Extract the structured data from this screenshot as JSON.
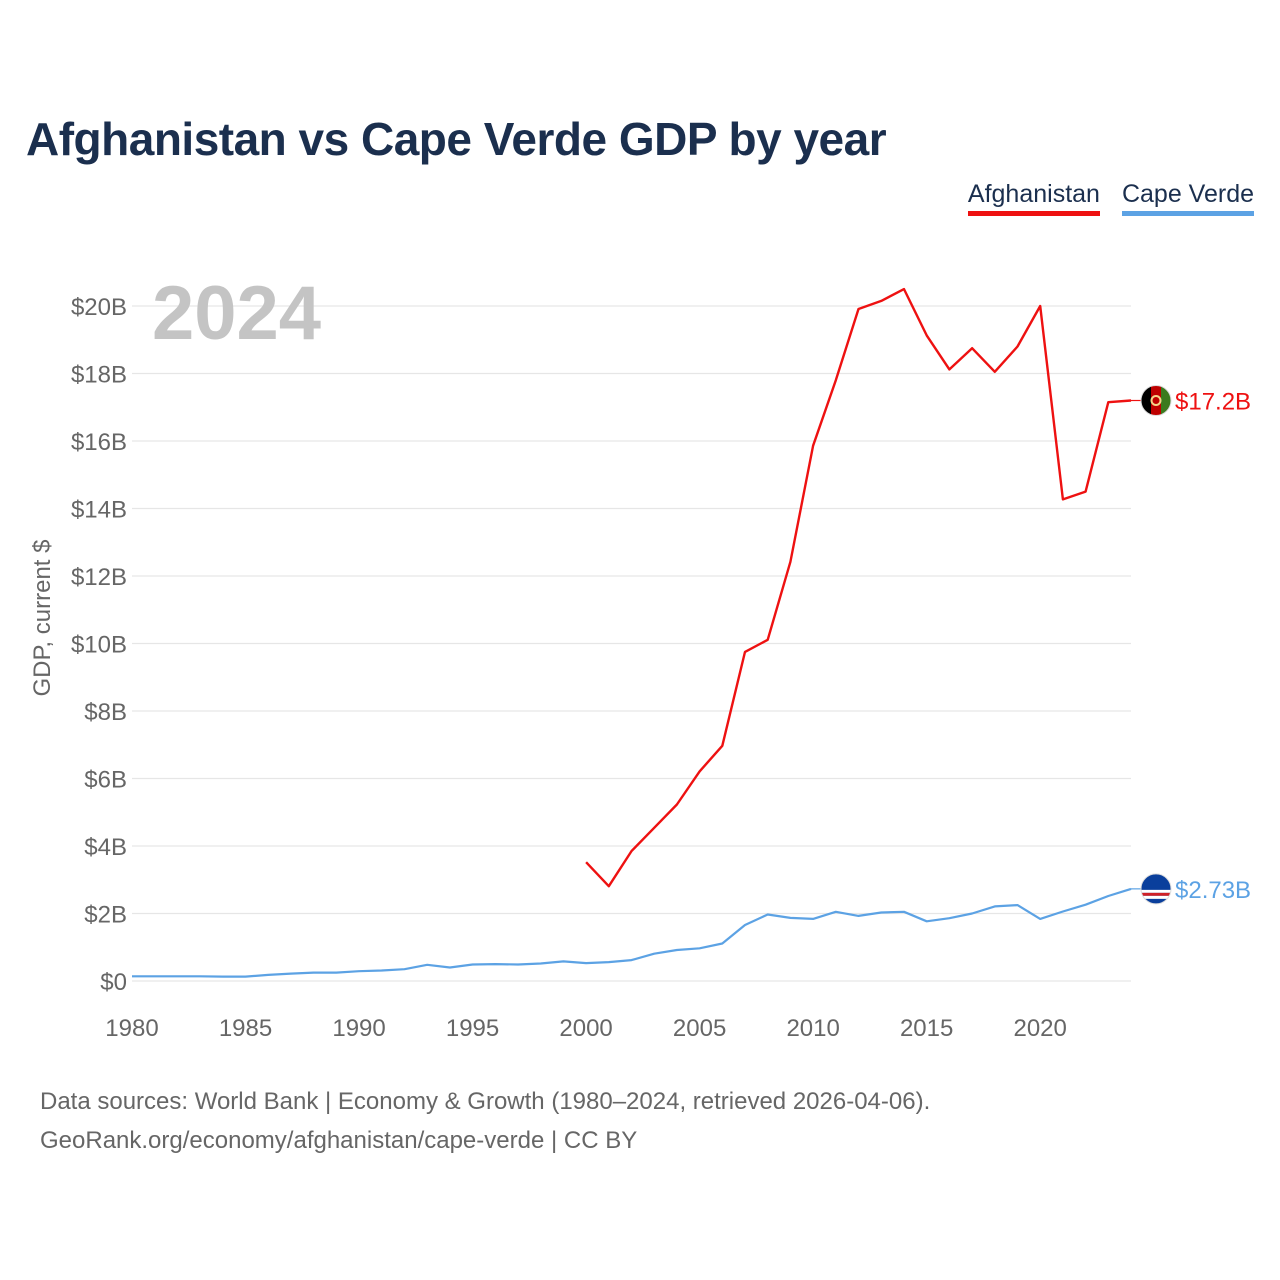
{
  "chart_data": {
    "type": "line",
    "title": "Afghanistan vs Cape Verde GDP by year",
    "ylabel": "GDP, current $",
    "xlabel": "",
    "year_label": "2024",
    "xlim": [
      1980,
      2024
    ],
    "ylim": [
      0,
      20
    ],
    "x_ticks": [
      1980,
      1985,
      1990,
      1995,
      2000,
      2005,
      2010,
      2015,
      2020
    ],
    "y_ticks": [
      {
        "value": 0,
        "label": "$0"
      },
      {
        "value": 2,
        "label": "$2B"
      },
      {
        "value": 4,
        "label": "$4B"
      },
      {
        "value": 6,
        "label": "$6B"
      },
      {
        "value": 8,
        "label": "$8B"
      },
      {
        "value": 10,
        "label": "$10B"
      },
      {
        "value": 12,
        "label": "$12B"
      },
      {
        "value": 14,
        "label": "$14B"
      },
      {
        "value": 16,
        "label": "$16B"
      },
      {
        "value": 18,
        "label": "$18B"
      },
      {
        "value": 20,
        "label": "$20B"
      }
    ],
    "units": "billions USD",
    "series": [
      {
        "name": "Afghanistan",
        "color": "#ee1111",
        "end_label": "$17.2B",
        "flag": "afghanistan-flag",
        "x": [
          2000,
          2001,
          2002,
          2003,
          2004,
          2005,
          2006,
          2007,
          2008,
          2009,
          2010,
          2011,
          2012,
          2013,
          2014,
          2015,
          2016,
          2017,
          2018,
          2019,
          2020,
          2021,
          2022,
          2023,
          2024
        ],
        "values": [
          3.52,
          2.81,
          3.85,
          4.54,
          5.23,
          6.21,
          6.97,
          9.75,
          10.11,
          12.42,
          15.86,
          17.8,
          19.91,
          20.15,
          20.5,
          19.13,
          18.12,
          18.75,
          18.05,
          18.8,
          20.0,
          14.27,
          14.5,
          17.15,
          17.2
        ]
      },
      {
        "name": "Cape Verde",
        "color": "#5ca2e4",
        "end_label": "$2.73B",
        "flag": "cape-verde-flag",
        "x": [
          1980,
          1981,
          1982,
          1983,
          1984,
          1985,
          1986,
          1987,
          1988,
          1989,
          1990,
          1991,
          1992,
          1993,
          1994,
          1995,
          1996,
          1997,
          1998,
          1999,
          2000,
          2001,
          2002,
          2003,
          2004,
          2005,
          2006,
          2007,
          2008,
          2009,
          2010,
          2011,
          2012,
          2013,
          2014,
          2015,
          2016,
          2017,
          2018,
          2019,
          2020,
          2021,
          2022,
          2023,
          2024
        ],
        "values": [
          0.14,
          0.14,
          0.14,
          0.14,
          0.13,
          0.13,
          0.18,
          0.22,
          0.25,
          0.25,
          0.29,
          0.31,
          0.35,
          0.48,
          0.4,
          0.49,
          0.5,
          0.49,
          0.52,
          0.58,
          0.53,
          0.56,
          0.62,
          0.81,
          0.92,
          0.97,
          1.11,
          1.66,
          1.97,
          1.87,
          1.84,
          2.05,
          1.93,
          2.03,
          2.05,
          1.77,
          1.86,
          2.0,
          2.21,
          2.25,
          1.84,
          2.06,
          2.26,
          2.52,
          2.73
        ]
      }
    ]
  },
  "legend": {
    "items": [
      {
        "label": "Afghanistan",
        "color": "#ee1111"
      },
      {
        "label": "Cape Verde",
        "color": "#5ca2e4"
      }
    ]
  },
  "footer": {
    "line1": "Data sources: World Bank | Economy & Growth (1980–2024, retrieved 2026-04-06).",
    "line2": "GeoRank.org/economy/afghanistan/cape-verde | CC BY"
  }
}
